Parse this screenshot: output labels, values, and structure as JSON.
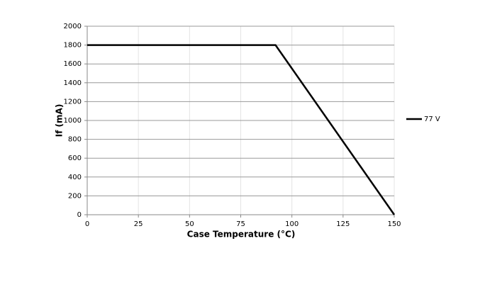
{
  "chart_data": {
    "type": "line",
    "xlabel": "Case Temperature (°C)",
    "ylabel": "If (mA)",
    "x": [
      0,
      92,
      150
    ],
    "series": [
      {
        "name": "77 V",
        "color": "#000000",
        "values": [
          1800,
          1800,
          0
        ]
      }
    ],
    "xlim": [
      0,
      150
    ],
    "xticks": [
      0,
      25,
      50,
      75,
      100,
      125,
      150
    ],
    "ylim": [
      0,
      2000
    ],
    "yticks": [
      0,
      200,
      400,
      600,
      800,
      1000,
      1200,
      1400,
      1600,
      1800,
      2000
    ],
    "grid": true,
    "legend": "right"
  }
}
